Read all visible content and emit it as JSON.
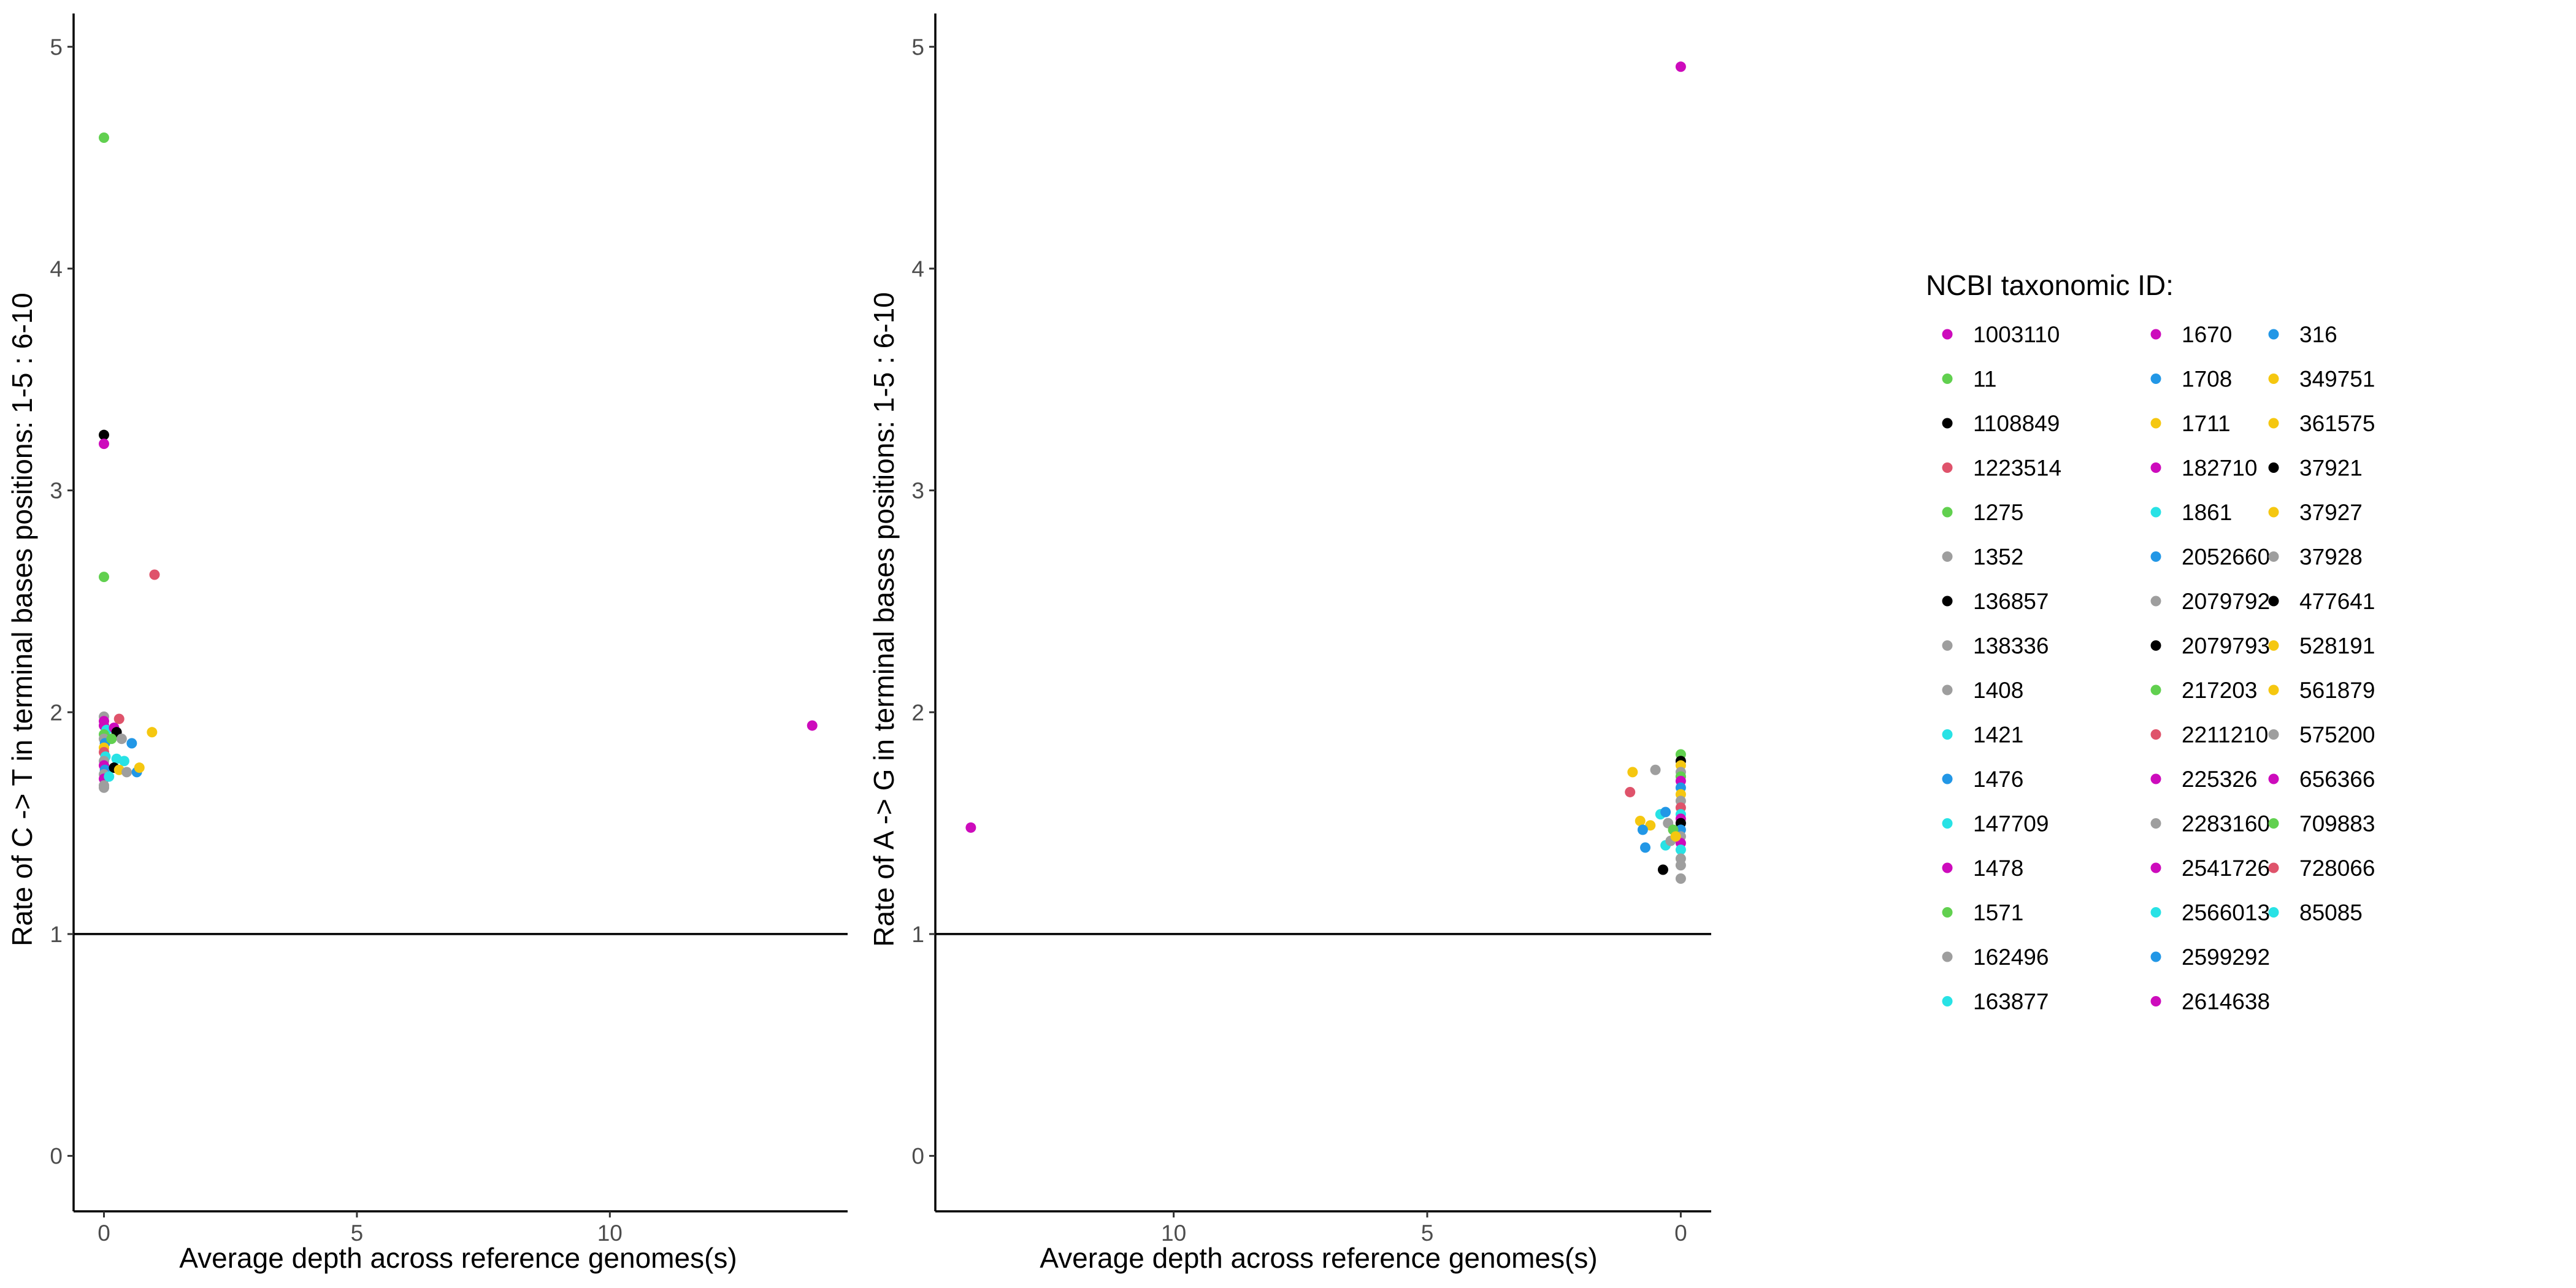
{
  "chart_data": [
    {
      "type": "scatter",
      "xlabel": "Average depth across reference genomes(s)",
      "ylabel": "Rate of C -> T in terminal bases positions: 1-5 : 6-10",
      "xlim": [
        -0.6,
        14.7
      ],
      "ylim": [
        -0.25,
        5.15
      ],
      "x_reversed": false,
      "xticks": [
        0,
        5,
        10
      ],
      "yticks": [
        0,
        1,
        2,
        3,
        4,
        5
      ],
      "reference_line_y": 1,
      "grid": false,
      "points": [
        {
          "x": 0.0,
          "y": 4.59,
          "color": "#61d04f"
        },
        {
          "x": 0.0,
          "y": 3.25,
          "color": "#000000"
        },
        {
          "x": 0.0,
          "y": 3.21,
          "color": "#cd0bbc"
        },
        {
          "x": 0.0,
          "y": 2.61,
          "color": "#61d04f"
        },
        {
          "x": 1.0,
          "y": 2.62,
          "color": "#df536b"
        },
        {
          "x": 14.0,
          "y": 1.94,
          "color": "#cd0bbc"
        },
        {
          "x": 0.0,
          "y": 1.98,
          "color": "#9e9e9e"
        },
        {
          "x": 0.0,
          "y": 1.96,
          "color": "#cd0bbc"
        },
        {
          "x": 0.0,
          "y": 1.94,
          "color": "#cd0bbc"
        },
        {
          "x": 0.05,
          "y": 1.92,
          "color": "#28e2e5"
        },
        {
          "x": 0.0,
          "y": 1.9,
          "color": "#61d04f"
        },
        {
          "x": 0.0,
          "y": 1.88,
          "color": "#9e9e9e"
        },
        {
          "x": 0.02,
          "y": 1.86,
          "color": "#2297e6"
        },
        {
          "x": 0.0,
          "y": 1.84,
          "color": "#f5c710"
        },
        {
          "x": 0.0,
          "y": 1.82,
          "color": "#df536b"
        },
        {
          "x": 0.03,
          "y": 1.8,
          "color": "#28e2e5"
        },
        {
          "x": 0.0,
          "y": 1.78,
          "color": "#9e9e9e"
        },
        {
          "x": 0.0,
          "y": 1.76,
          "color": "#cd0bbc"
        },
        {
          "x": 0.02,
          "y": 1.74,
          "color": "#2297e6"
        },
        {
          "x": 0.0,
          "y": 1.72,
          "color": "#9e9e9e"
        },
        {
          "x": 0.0,
          "y": 1.7,
          "color": "#cd0bbc"
        },
        {
          "x": 0.0,
          "y": 1.67,
          "color": "#9e9e9e"
        },
        {
          "x": 0.0,
          "y": 1.66,
          "color": "#9e9e9e"
        },
        {
          "x": 0.3,
          "y": 1.97,
          "color": "#df536b"
        },
        {
          "x": 0.2,
          "y": 1.93,
          "color": "#cd0bbc"
        },
        {
          "x": 0.25,
          "y": 1.91,
          "color": "#000000"
        },
        {
          "x": 0.15,
          "y": 1.88,
          "color": "#61d04f"
        },
        {
          "x": 0.35,
          "y": 1.88,
          "color": "#9e9e9e"
        },
        {
          "x": 0.55,
          "y": 1.86,
          "color": "#2297e6"
        },
        {
          "x": 0.25,
          "y": 1.79,
          "color": "#28e2e5"
        },
        {
          "x": 0.4,
          "y": 1.78,
          "color": "#28e2e5"
        },
        {
          "x": 0.2,
          "y": 1.75,
          "color": "#000000"
        },
        {
          "x": 0.3,
          "y": 1.74,
          "color": "#f5c710"
        },
        {
          "x": 0.45,
          "y": 1.73,
          "color": "#9e9e9e"
        },
        {
          "x": 0.65,
          "y": 1.73,
          "color": "#2297e6"
        },
        {
          "x": 0.7,
          "y": 1.75,
          "color": "#f5c710"
        },
        {
          "x": 0.95,
          "y": 1.91,
          "color": "#f5c710"
        },
        {
          "x": 0.1,
          "y": 1.71,
          "color": "#28e2e5"
        }
      ]
    },
    {
      "type": "scatter",
      "xlabel": "Average depth across reference genomes(s)",
      "ylabel": "Rate of A -> G in terminal bases positions: 1-5 : 6-10",
      "xlim": [
        14.7,
        -0.6
      ],
      "ylim": [
        -0.25,
        5.15
      ],
      "x_reversed": true,
      "xticks": [
        0,
        5,
        10
      ],
      "yticks": [
        0,
        1,
        2,
        3,
        4,
        5
      ],
      "reference_line_y": 1,
      "grid": false,
      "points": [
        {
          "x": 0.0,
          "y": 4.91,
          "color": "#cd0bbc"
        },
        {
          "x": 14.0,
          "y": 1.48,
          "color": "#cd0bbc"
        },
        {
          "x": 0.0,
          "y": 1.81,
          "color": "#61d04f"
        },
        {
          "x": 0.0,
          "y": 1.78,
          "color": "#000000"
        },
        {
          "x": 0.0,
          "y": 1.76,
          "color": "#f5c710"
        },
        {
          "x": 0.0,
          "y": 1.73,
          "color": "#9e9e9e"
        },
        {
          "x": 0.0,
          "y": 1.71,
          "color": "#61d04f"
        },
        {
          "x": 0.0,
          "y": 1.69,
          "color": "#cd0bbc"
        },
        {
          "x": 0.0,
          "y": 1.66,
          "color": "#2297e6"
        },
        {
          "x": 0.0,
          "y": 1.63,
          "color": "#f5c710"
        },
        {
          "x": 0.0,
          "y": 1.6,
          "color": "#9e9e9e"
        },
        {
          "x": 0.0,
          "y": 1.57,
          "color": "#df536b"
        },
        {
          "x": 0.0,
          "y": 1.54,
          "color": "#28e2e5"
        },
        {
          "x": 0.0,
          "y": 1.52,
          "color": "#cd0bbc"
        },
        {
          "x": 0.0,
          "y": 1.5,
          "color": "#000000"
        },
        {
          "x": 0.0,
          "y": 1.47,
          "color": "#2297e6"
        },
        {
          "x": 0.0,
          "y": 1.44,
          "color": "#9e9e9e"
        },
        {
          "x": 0.0,
          "y": 1.41,
          "color": "#cd0bbc"
        },
        {
          "x": 0.0,
          "y": 1.38,
          "color": "#28e2e5"
        },
        {
          "x": 0.0,
          "y": 1.34,
          "color": "#9e9e9e"
        },
        {
          "x": 0.0,
          "y": 1.31,
          "color": "#9e9e9e"
        },
        {
          "x": 0.0,
          "y": 1.25,
          "color": "#9e9e9e"
        },
        {
          "x": 1.0,
          "y": 1.64,
          "color": "#df536b"
        },
        {
          "x": 0.95,
          "y": 1.73,
          "color": "#f5c710"
        },
        {
          "x": 0.8,
          "y": 1.51,
          "color": "#f5c710"
        },
        {
          "x": 0.5,
          "y": 1.74,
          "color": "#9e9e9e"
        },
        {
          "x": 0.4,
          "y": 1.54,
          "color": "#28e2e5"
        },
        {
          "x": 0.3,
          "y": 1.55,
          "color": "#2297e6"
        },
        {
          "x": 0.6,
          "y": 1.49,
          "color": "#f5c710"
        },
        {
          "x": 0.25,
          "y": 1.5,
          "color": "#9e9e9e"
        },
        {
          "x": 0.75,
          "y": 1.47,
          "color": "#2297e6"
        },
        {
          "x": 0.15,
          "y": 1.47,
          "color": "#61d04f"
        },
        {
          "x": 0.7,
          "y": 1.39,
          "color": "#2297e6"
        },
        {
          "x": 0.3,
          "y": 1.4,
          "color": "#28e2e5"
        },
        {
          "x": 0.2,
          "y": 1.42,
          "color": "#9e9e9e"
        },
        {
          "x": 0.35,
          "y": 1.29,
          "color": "#000000"
        },
        {
          "x": 0.1,
          "y": 1.44,
          "color": "#f5c710"
        }
      ]
    }
  ],
  "legend": {
    "title": "NCBI taxonomic ID:",
    "placement": "right",
    "columns": [
      [
        {
          "label": "1003110",
          "color": "#cd0bbc"
        },
        {
          "label": "11",
          "color": "#61d04f"
        },
        {
          "label": "1108849",
          "color": "#000000"
        },
        {
          "label": "1223514",
          "color": "#df536b"
        },
        {
          "label": "1275",
          "color": "#61d04f"
        },
        {
          "label": "1352",
          "color": "#9e9e9e"
        },
        {
          "label": "136857",
          "color": "#000000"
        },
        {
          "label": "138336",
          "color": "#9e9e9e"
        },
        {
          "label": "1408",
          "color": "#9e9e9e"
        },
        {
          "label": "1421",
          "color": "#28e2e5"
        },
        {
          "label": "1476",
          "color": "#2297e6"
        },
        {
          "label": "147709",
          "color": "#28e2e5"
        },
        {
          "label": "1478",
          "color": "#cd0bbc"
        },
        {
          "label": "1571",
          "color": "#61d04f"
        },
        {
          "label": "162496",
          "color": "#9e9e9e"
        },
        {
          "label": "163877",
          "color": "#28e2e5"
        }
      ],
      [
        {
          "label": "1670",
          "color": "#cd0bbc"
        },
        {
          "label": "1708",
          "color": "#2297e6"
        },
        {
          "label": "1711",
          "color": "#f5c710"
        },
        {
          "label": "182710",
          "color": "#cd0bbc"
        },
        {
          "label": "1861",
          "color": "#28e2e5"
        },
        {
          "label": "2052660",
          "color": "#2297e6"
        },
        {
          "label": "2079792",
          "color": "#9e9e9e"
        },
        {
          "label": "2079793",
          "color": "#000000"
        },
        {
          "label": "217203",
          "color": "#61d04f"
        },
        {
          "label": "2211210",
          "color": "#df536b"
        },
        {
          "label": "225326",
          "color": "#cd0bbc"
        },
        {
          "label": "2283160",
          "color": "#9e9e9e"
        },
        {
          "label": "2541726",
          "color": "#cd0bbc"
        },
        {
          "label": "2566013",
          "color": "#28e2e5"
        },
        {
          "label": "2599292",
          "color": "#2297e6"
        },
        {
          "label": "2614638",
          "color": "#cd0bbc"
        }
      ],
      [
        {
          "label": "316",
          "color": "#2297e6"
        },
        {
          "label": "349751",
          "color": "#f5c710"
        },
        {
          "label": "361575",
          "color": "#f5c710"
        },
        {
          "label": "37921",
          "color": "#000000"
        },
        {
          "label": "37927",
          "color": "#f5c710"
        },
        {
          "label": "37928",
          "color": "#9e9e9e"
        },
        {
          "label": "477641",
          "color": "#000000"
        },
        {
          "label": "528191",
          "color": "#f5c710"
        },
        {
          "label": "561879",
          "color": "#f5c710"
        },
        {
          "label": "575200",
          "color": "#9e9e9e"
        },
        {
          "label": "656366",
          "color": "#cd0bbc"
        },
        {
          "label": "709883",
          "color": "#61d04f"
        },
        {
          "label": "728066",
          "color": "#df536b"
        },
        {
          "label": "85085",
          "color": "#28e2e5"
        }
      ]
    ]
  }
}
